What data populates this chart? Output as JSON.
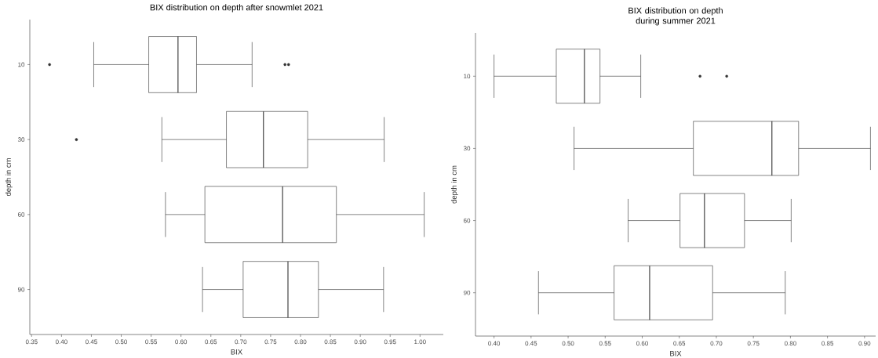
{
  "chart_data": [
    {
      "type": "box",
      "title": "BIX distribution on depth after snowmlet 2021",
      "xlabel": "BIX",
      "ylabel": "depth in cm",
      "orientation": "horizontal",
      "categories": [
        "10",
        "30",
        "60",
        "90"
      ],
      "boxes": [
        {
          "low": 0.454,
          "q1": 0.546,
          "median": 0.595,
          "q3": 0.626,
          "high": 0.719,
          "outliers": [
            0.38,
            0.774,
            0.78
          ]
        },
        {
          "low": 0.568,
          "q1": 0.676,
          "median": 0.738,
          "q3": 0.812,
          "high": 0.94,
          "outliers": [
            0.425
          ]
        },
        {
          "low": 0.574,
          "q1": 0.64,
          "median": 0.77,
          "q3": 0.86,
          "high": 1.007
        },
        {
          "low": 0.636,
          "q1": 0.704,
          "median": 0.779,
          "q3": 0.83,
          "high": 0.939
        }
      ],
      "xlim": [
        0.347,
        1.039
      ],
      "xticks": [
        {
          "value": 0.35,
          "label": "0.35"
        },
        {
          "value": 0.4,
          "label": "0.40"
        },
        {
          "value": 0.45,
          "label": "0.45"
        },
        {
          "value": 0.5,
          "label": "0.50"
        },
        {
          "value": 0.55,
          "label": "0.55"
        },
        {
          "value": 0.6,
          "label": "0.60"
        },
        {
          "value": 0.65,
          "label": "0.65"
        },
        {
          "value": 0.7,
          "label": "0.70"
        },
        {
          "value": 0.75,
          "label": "0.75"
        },
        {
          "value": 0.8,
          "label": "0.80"
        },
        {
          "value": 0.85,
          "label": "0.85"
        },
        {
          "value": 0.9,
          "label": "0.90"
        },
        {
          "value": 0.95,
          "label": "0.95"
        },
        {
          "value": 1.0,
          "label": "1.00"
        }
      ]
    },
    {
      "type": "box",
      "title": "BIX distribution on depth during summer 2021",
      "xlabel": "BIX",
      "ylabel": "depth in cm",
      "orientation": "horizontal",
      "categories": [
        "10",
        "30",
        "60",
        "90"
      ],
      "boxes": [
        {
          "low": 0.4,
          "q1": 0.484,
          "median": 0.522,
          "q3": 0.543,
          "high": 0.598,
          "outliers": [
            0.678,
            0.714
          ]
        },
        {
          "low": 0.508,
          "q1": 0.669,
          "median": 0.775,
          "q3": 0.811,
          "high": 0.908
        },
        {
          "low": 0.581,
          "q1": 0.651,
          "median": 0.684,
          "q3": 0.738,
          "high": 0.801
        },
        {
          "low": 0.46,
          "q1": 0.562,
          "median": 0.61,
          "q3": 0.695,
          "high": 0.793
        }
      ],
      "xlim": [
        0.375,
        0.915
      ],
      "xticks": [
        {
          "value": 0.4,
          "label": "0.40"
        },
        {
          "value": 0.45,
          "label": "0.45"
        },
        {
          "value": 0.5,
          "label": "0.50"
        },
        {
          "value": 0.55,
          "label": "0.55"
        },
        {
          "value": 0.6,
          "label": "0.60"
        },
        {
          "value": 0.65,
          "label": "0.65"
        },
        {
          "value": 0.7,
          "label": "0.70"
        },
        {
          "value": 0.75,
          "label": "0.75"
        },
        {
          "value": 0.8,
          "label": "0.80"
        },
        {
          "value": 0.85,
          "label": "0.85"
        },
        {
          "value": 0.9,
          "label": "0.90"
        }
      ]
    }
  ]
}
